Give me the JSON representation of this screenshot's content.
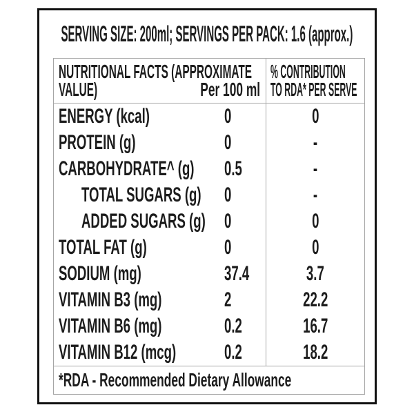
{
  "label": {
    "serving_line": "SERVING SIZE: 200ml; SERVINGS PER PACK: 1.6 (approx.)",
    "table": {
      "header": {
        "col1_line1": "NUTRITIONAL FACTS (APPROXIMATE",
        "col1_line2": "VALUE)",
        "col1_unit": "Per 100 ml",
        "col2_line1": "% CONTRIBUTION",
        "col2_line2": "TO RDA* PER SERVE"
      },
      "rows": [
        {
          "label": "ENERGY (kcal)",
          "per_100ml": "0",
          "rda_per_serve": "0"
        },
        {
          "label": "PROTEIN (g)",
          "per_100ml": "0",
          "rda_per_serve": "-"
        },
        {
          "label": "CARBOHYDRATE^ (g)",
          "per_100ml": "0.5",
          "rda_per_serve": "-"
        },
        {
          "label": "TOTAL SUGARS (g)",
          "per_100ml": "0",
          "rda_per_serve": "-"
        },
        {
          "label": "ADDED SUGARS (g)",
          "per_100ml": "0",
          "rda_per_serve": "0"
        },
        {
          "label": "TOTAL FAT (g)",
          "per_100ml": "0",
          "rda_per_serve": "0"
        },
        {
          "label": "SODIUM (mg)",
          "per_100ml": "37.4",
          "rda_per_serve": "3.7"
        },
        {
          "label": "VITAMIN B3 (mg)",
          "per_100ml": "2",
          "rda_per_serve": "22.2"
        },
        {
          "label": "VITAMIN B6 (mg)",
          "per_100ml": "0.2",
          "rda_per_serve": "16.7"
        },
        {
          "label": "VITAMIN B12 (mcg)",
          "per_100ml": "0.2",
          "rda_per_serve": "18.2"
        }
      ],
      "footnote": "*RDA - Recommended Dietary Allowance"
    },
    "colors": {
      "outer_border": "#111111",
      "grid_border": "#a6a6a6",
      "text": "#1c1c1c",
      "background": "#ffffff"
    }
  }
}
